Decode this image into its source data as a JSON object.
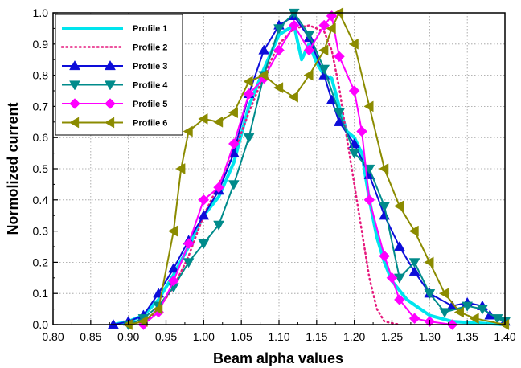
{
  "chart_data": {
    "type": "line",
    "title": "",
    "xlabel": "Beam alpha values",
    "ylabel": "Normolized current",
    "xlim": [
      0.8,
      1.4
    ],
    "ylim": [
      0.0,
      1.0
    ],
    "xticks": [
      "0.80",
      "0.85",
      "0.90",
      "0.95",
      "1.00",
      "1.05",
      "1.10",
      "1.15",
      "1.20",
      "1.25",
      "1.30",
      "1.35",
      "1.40"
    ],
    "yticks": [
      "0.0",
      "0.1",
      "0.2",
      "0.3",
      "0.4",
      "0.5",
      "0.6",
      "0.7",
      "0.8",
      "0.9",
      "1.0"
    ],
    "grid": true,
    "legend_position": "top-left",
    "series": [
      {
        "name": "Profile 1",
        "color": "#00e5ee",
        "style": "thick-line",
        "marker": "none",
        "points": [
          [
            0.88,
            0.0
          ],
          [
            0.9,
            0.01
          ],
          [
            0.92,
            0.03
          ],
          [
            0.94,
            0.08
          ],
          [
            0.96,
            0.16
          ],
          [
            0.98,
            0.25
          ],
          [
            1.0,
            0.35
          ],
          [
            1.02,
            0.41
          ],
          [
            1.04,
            0.52
          ],
          [
            1.06,
            0.7
          ],
          [
            1.08,
            0.82
          ],
          [
            1.1,
            0.93
          ],
          [
            1.12,
            0.96
          ],
          [
            1.13,
            0.85
          ],
          [
            1.14,
            0.9
          ],
          [
            1.15,
            0.84
          ],
          [
            1.16,
            0.8
          ],
          [
            1.17,
            0.79
          ],
          [
            1.18,
            0.7
          ],
          [
            1.19,
            0.62
          ],
          [
            1.2,
            0.6
          ],
          [
            1.21,
            0.55
          ],
          [
            1.22,
            0.4
          ],
          [
            1.23,
            0.28
          ],
          [
            1.24,
            0.2
          ],
          [
            1.25,
            0.14
          ],
          [
            1.27,
            0.08
          ],
          [
            1.3,
            0.03
          ],
          [
            1.33,
            0.01
          ],
          [
            1.4,
            0.0
          ]
        ]
      },
      {
        "name": "Profile 2",
        "color": "#e6197d",
        "style": "dotted",
        "marker": "none",
        "points": [
          [
            0.92,
            0.0
          ],
          [
            0.94,
            0.05
          ],
          [
            0.96,
            0.12
          ],
          [
            0.98,
            0.22
          ],
          [
            1.0,
            0.35
          ],
          [
            1.02,
            0.45
          ],
          [
            1.04,
            0.55
          ],
          [
            1.06,
            0.68
          ],
          [
            1.08,
            0.8
          ],
          [
            1.1,
            0.9
          ],
          [
            1.12,
            0.95
          ],
          [
            1.14,
            0.96
          ],
          [
            1.16,
            0.94
          ],
          [
            1.17,
            0.88
          ],
          [
            1.18,
            0.76
          ],
          [
            1.19,
            0.6
          ],
          [
            1.2,
            0.45
          ],
          [
            1.21,
            0.3
          ],
          [
            1.22,
            0.15
          ],
          [
            1.23,
            0.05
          ],
          [
            1.24,
            0.01
          ],
          [
            1.26,
            0.0
          ]
        ]
      },
      {
        "name": "Profile 3",
        "color": "#0d0dd9",
        "style": "solid",
        "marker": "triangle-up",
        "points": [
          [
            0.88,
            0.0
          ],
          [
            0.9,
            0.01
          ],
          [
            0.92,
            0.03
          ],
          [
            0.94,
            0.1
          ],
          [
            0.96,
            0.18
          ],
          [
            0.98,
            0.27
          ],
          [
            1.0,
            0.35
          ],
          [
            1.02,
            0.43
          ],
          [
            1.04,
            0.55
          ],
          [
            1.06,
            0.74
          ],
          [
            1.08,
            0.88
          ],
          [
            1.1,
            0.96
          ],
          [
            1.12,
            0.99
          ],
          [
            1.14,
            0.92
          ],
          [
            1.16,
            0.8
          ],
          [
            1.17,
            0.72
          ],
          [
            1.18,
            0.65
          ],
          [
            1.2,
            0.58
          ],
          [
            1.22,
            0.48
          ],
          [
            1.24,
            0.35
          ],
          [
            1.26,
            0.25
          ],
          [
            1.28,
            0.17
          ],
          [
            1.3,
            0.1
          ],
          [
            1.33,
            0.06
          ],
          [
            1.35,
            0.07
          ],
          [
            1.37,
            0.06
          ],
          [
            1.38,
            0.03
          ],
          [
            1.4,
            0.01
          ]
        ]
      },
      {
        "name": "Profile 4",
        "color": "#008b8b",
        "style": "solid",
        "marker": "triangle-down",
        "points": [
          [
            0.9,
            0.0
          ],
          [
            0.92,
            0.02
          ],
          [
            0.94,
            0.06
          ],
          [
            0.96,
            0.12
          ],
          [
            0.98,
            0.2
          ],
          [
            1.0,
            0.26
          ],
          [
            1.02,
            0.32
          ],
          [
            1.04,
            0.45
          ],
          [
            1.06,
            0.6
          ],
          [
            1.08,
            0.8
          ],
          [
            1.1,
            0.95
          ],
          [
            1.12,
            1.0
          ],
          [
            1.14,
            0.93
          ],
          [
            1.16,
            0.82
          ],
          [
            1.18,
            0.68
          ],
          [
            1.2,
            0.55
          ],
          [
            1.22,
            0.5
          ],
          [
            1.24,
            0.38
          ],
          [
            1.26,
            0.15
          ],
          [
            1.28,
            0.2
          ],
          [
            1.3,
            0.1
          ],
          [
            1.32,
            0.04
          ],
          [
            1.35,
            0.06
          ],
          [
            1.37,
            0.05
          ],
          [
            1.39,
            0.02
          ],
          [
            1.4,
            0.01
          ]
        ]
      },
      {
        "name": "Profile 5",
        "color": "#ff00ff",
        "style": "solid",
        "marker": "diamond",
        "points": [
          [
            0.92,
            0.0
          ],
          [
            0.94,
            0.04
          ],
          [
            0.96,
            0.14
          ],
          [
            0.98,
            0.26
          ],
          [
            1.0,
            0.4
          ],
          [
            1.02,
            0.44
          ],
          [
            1.04,
            0.58
          ],
          [
            1.06,
            0.74
          ],
          [
            1.08,
            0.79
          ],
          [
            1.1,
            0.88
          ],
          [
            1.12,
            0.96
          ],
          [
            1.14,
            0.88
          ],
          [
            1.16,
            0.96
          ],
          [
            1.17,
            0.99
          ],
          [
            1.18,
            0.86
          ],
          [
            1.2,
            0.75
          ],
          [
            1.21,
            0.62
          ],
          [
            1.22,
            0.4
          ],
          [
            1.24,
            0.22
          ],
          [
            1.25,
            0.15
          ],
          [
            1.26,
            0.08
          ],
          [
            1.28,
            0.02
          ],
          [
            1.3,
            0.01
          ],
          [
            1.33,
            0.0
          ]
        ]
      },
      {
        "name": "Profile 6",
        "color": "#8b8b00",
        "style": "solid",
        "marker": "triangle-left",
        "points": [
          [
            0.9,
            0.0
          ],
          [
            0.92,
            0.01
          ],
          [
            0.94,
            0.05
          ],
          [
            0.96,
            0.3
          ],
          [
            0.97,
            0.5
          ],
          [
            0.98,
            0.62
          ],
          [
            1.0,
            0.66
          ],
          [
            1.02,
            0.65
          ],
          [
            1.04,
            0.68
          ],
          [
            1.06,
            0.78
          ],
          [
            1.08,
            0.8
          ],
          [
            1.1,
            0.76
          ],
          [
            1.12,
            0.73
          ],
          [
            1.14,
            0.8
          ],
          [
            1.16,
            0.88
          ],
          [
            1.17,
            0.95
          ],
          [
            1.18,
            1.0
          ],
          [
            1.2,
            0.9
          ],
          [
            1.22,
            0.7
          ],
          [
            1.24,
            0.5
          ],
          [
            1.26,
            0.38
          ],
          [
            1.28,
            0.3
          ],
          [
            1.3,
            0.2
          ],
          [
            1.32,
            0.1
          ],
          [
            1.34,
            0.04
          ],
          [
            1.36,
            0.02
          ],
          [
            1.4,
            0.0
          ]
        ]
      }
    ]
  }
}
